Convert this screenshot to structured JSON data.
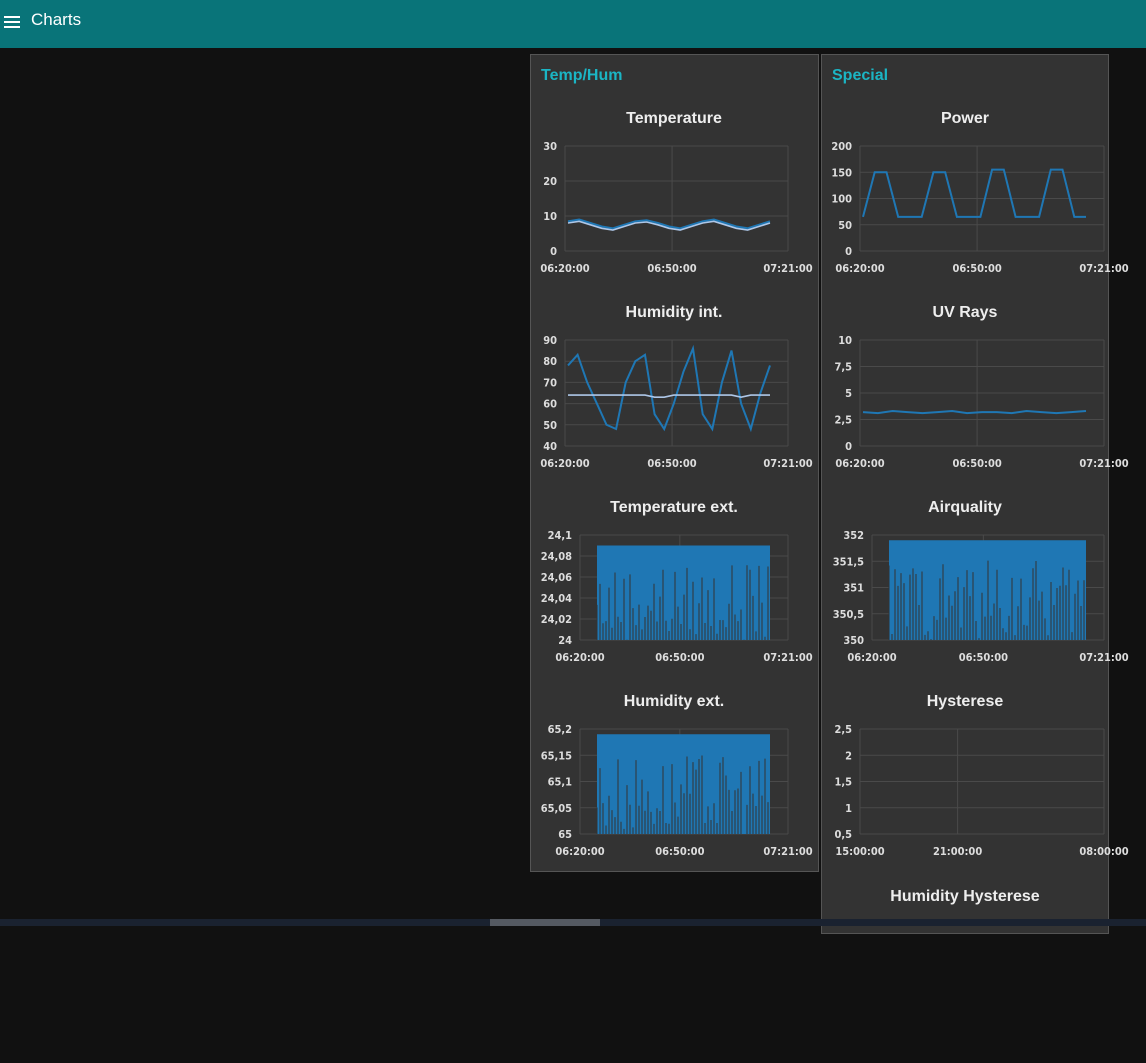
{
  "app": {
    "title": "Charts"
  },
  "groups": [
    {
      "title": "Temp/Hum"
    },
    {
      "title": "Special"
    }
  ],
  "charts": [
    {
      "title": "Temperature",
      "yticks": [
        "30",
        "20",
        "10",
        "0"
      ],
      "xticks": [
        "06:20:00",
        "06:50:00",
        "07:21:00"
      ]
    },
    {
      "title": "Humidity int.",
      "yticks": [
        "90",
        "80",
        "70",
        "60",
        "50",
        "40"
      ],
      "xticks": [
        "06:20:00",
        "06:50:00",
        "07:21:00"
      ]
    },
    {
      "title": "Temperature ext.",
      "yticks": [
        "24,1",
        "24,08",
        "24,06",
        "24,04",
        "24,02",
        "24"
      ],
      "xticks": [
        "06:20:00",
        "06:50:00",
        "07:21:00"
      ]
    },
    {
      "title": "Humidity ext.",
      "yticks": [
        "65,2",
        "65,15",
        "65,1",
        "65,05",
        "65"
      ],
      "xticks": [
        "06:20:00",
        "06:50:00",
        "07:21:00"
      ]
    },
    {
      "title": "Power",
      "yticks": [
        "200",
        "150",
        "100",
        "50",
        "0"
      ],
      "xticks": [
        "06:20:00",
        "06:50:00",
        "07:21:00"
      ]
    },
    {
      "title": "UV Rays",
      "yticks": [
        "10",
        "7,5",
        "5",
        "2,5",
        "0"
      ],
      "xticks": [
        "06:20:00",
        "06:50:00",
        "07:21:00"
      ]
    },
    {
      "title": "Airquality",
      "yticks": [
        "352",
        "351,5",
        "351",
        "350,5",
        "350"
      ],
      "xticks": [
        "06:20:00",
        "06:50:00",
        "07:21:00"
      ]
    },
    {
      "title": "Hysterese",
      "yticks": [
        "2,5",
        "2",
        "1,5",
        "1",
        "0,5"
      ],
      "xticks": [
        "15:00:00",
        "21:00:00",
        "08:00:00"
      ]
    },
    {
      "title": "Humidity Hysterese",
      "yticks": [],
      "xticks": []
    }
  ],
  "chart_data": [
    {
      "type": "line",
      "title": "Temperature",
      "ylim": [
        0,
        30
      ],
      "series": [
        {
          "color": "#1f77b4",
          "values": [
            8.5,
            9,
            8,
            7,
            6.5,
            7.5,
            8.5,
            8.8,
            8,
            7,
            6.5,
            7.5,
            8.5,
            9,
            8,
            7,
            6.5,
            7.5,
            8.5
          ]
        },
        {
          "color": "#aec7e8",
          "values": [
            8,
            8.5,
            7.5,
            6.5,
            6,
            7,
            8,
            8.3,
            7.5,
            6.5,
            6,
            7,
            8,
            8.5,
            7.5,
            6.5,
            6,
            7,
            8
          ]
        }
      ]
    },
    {
      "type": "line",
      "title": "Humidity int.",
      "ylim": [
        40,
        90
      ],
      "series": [
        {
          "color": "#1f77b4",
          "values": [
            78,
            83,
            70,
            60,
            50,
            48,
            70,
            80,
            83,
            55,
            48,
            60,
            75,
            86,
            55,
            48,
            70,
            85,
            60,
            48,
            65,
            78
          ]
        },
        {
          "color": "#aec7e8",
          "values": [
            64,
            64,
            64,
            64,
            64,
            64,
            64,
            64,
            64,
            63,
            63,
            64,
            64,
            64,
            64,
            64,
            64,
            64,
            63,
            64,
            64,
            64
          ]
        }
      ]
    },
    {
      "type": "area",
      "title": "Temperature ext.",
      "ylim": [
        24,
        24.1
      ],
      "series": [
        {
          "color": "#1f77b4",
          "values": [
            24,
            24.09
          ]
        }
      ]
    },
    {
      "type": "area",
      "title": "Humidity ext.",
      "ylim": [
        65,
        65.2
      ],
      "series": [
        {
          "color": "#1f77b4",
          "values": [
            65,
            65.19
          ]
        }
      ]
    },
    {
      "type": "line",
      "title": "Power",
      "ylim": [
        0,
        200
      ],
      "series": [
        {
          "color": "#1f77b4",
          "values": [
            65,
            150,
            150,
            65,
            65,
            65,
            150,
            150,
            65,
            65,
            65,
            155,
            155,
            65,
            65,
            65,
            155,
            155,
            65,
            65
          ]
        }
      ]
    },
    {
      "type": "line",
      "title": "UV Rays",
      "ylim": [
        0,
        10
      ],
      "series": [
        {
          "color": "#1f77b4",
          "values": [
            3.2,
            3.1,
            3.3,
            3.2,
            3.1,
            3.2,
            3.3,
            3.1,
            3.2,
            3.2,
            3.1,
            3.3,
            3.2,
            3.1,
            3.2,
            3.3
          ]
        }
      ]
    },
    {
      "type": "area",
      "title": "Airquality",
      "ylim": [
        350,
        352
      ],
      "series": [
        {
          "color": "#1f77b4",
          "values": [
            350,
            351.9
          ]
        }
      ]
    },
    {
      "type": "line",
      "title": "Hysterese",
      "ylim": [
        0.5,
        2.5
      ],
      "series": []
    },
    {
      "type": "line",
      "title": "Humidity Hysterese",
      "series": []
    }
  ]
}
